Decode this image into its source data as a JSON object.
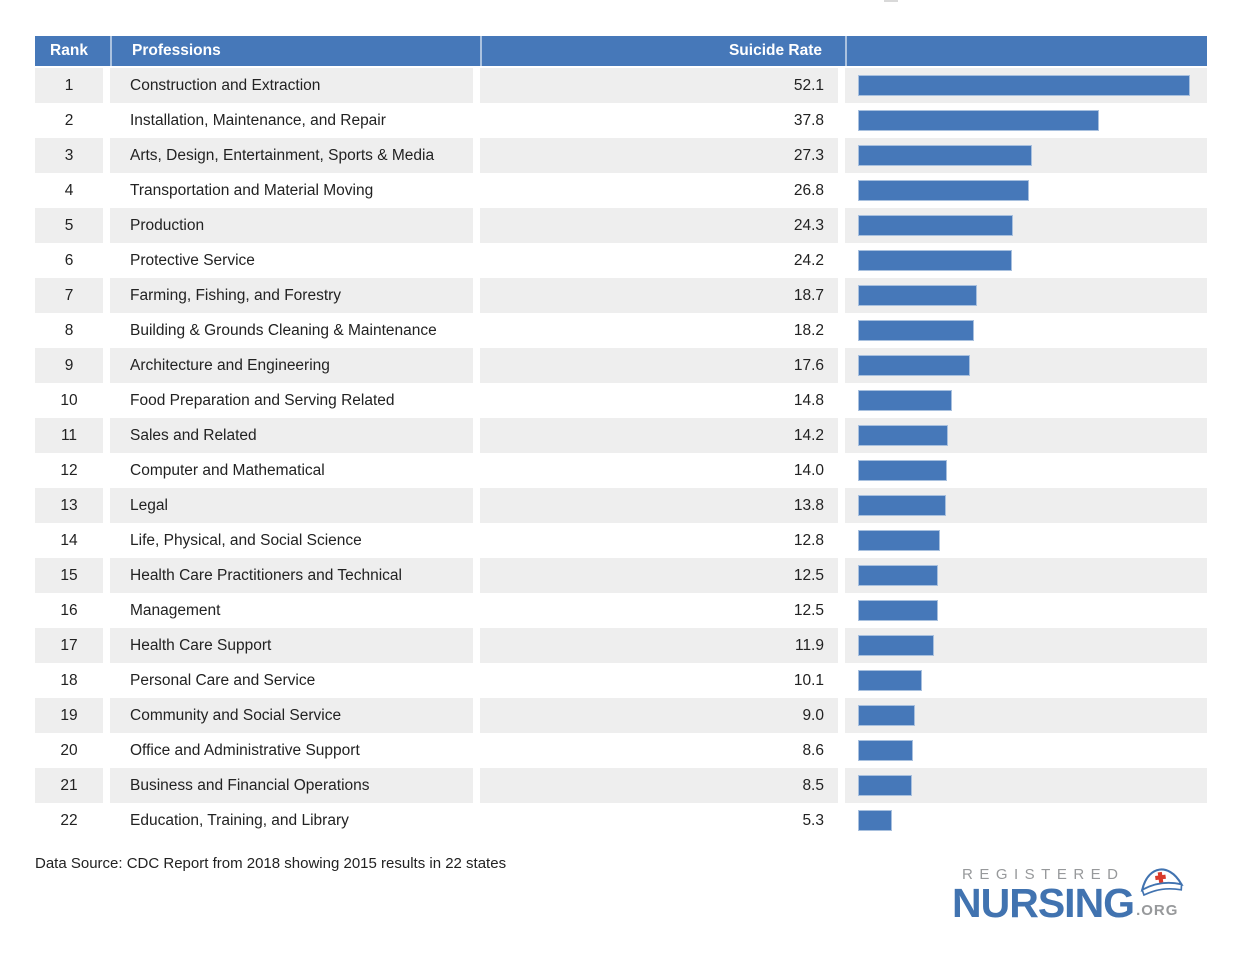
{
  "table_header": {
    "rank": "Rank",
    "professions": "Professions",
    "rate": "Suicide Rate",
    "chart": ""
  },
  "chart_data": {
    "type": "bar",
    "orientation": "horizontal",
    "value_label": "Suicide Rate",
    "max_value": 52.1,
    "bar_color": "#4678b9",
    "rows": [
      {
        "rank": "1",
        "profession": "Construction and Extraction",
        "rate": "52.1"
      },
      {
        "rank": "2",
        "profession": "Installation, Maintenance, and Repair",
        "rate": "37.8"
      },
      {
        "rank": "3",
        "profession": "Arts, Design, Entertainment, Sports & Media",
        "rate": "27.3"
      },
      {
        "rank": "4",
        "profession": "Transportation and Material Moving",
        "rate": "26.8"
      },
      {
        "rank": "5",
        "profession": "Production",
        "rate": "24.3"
      },
      {
        "rank": "6",
        "profession": "Protective Service",
        "rate": "24.2"
      },
      {
        "rank": "7",
        "profession": "Farming, Fishing, and Forestry",
        "rate": "18.7"
      },
      {
        "rank": "8",
        "profession": "Building & Grounds Cleaning & Maintenance",
        "rate": "18.2"
      },
      {
        "rank": "9",
        "profession": "Architecture and Engineering",
        "rate": "17.6"
      },
      {
        "rank": "10",
        "profession": "Food Preparation and Serving Related",
        "rate": "14.8"
      },
      {
        "rank": "11",
        "profession": "Sales and Related",
        "rate": "14.2"
      },
      {
        "rank": "12",
        "profession": "Computer and Mathematical",
        "rate": "14.0"
      },
      {
        "rank": "13",
        "profession": "Legal",
        "rate": "13.8"
      },
      {
        "rank": "14",
        "profession": "Life, Physical, and Social Science",
        "rate": "12.8"
      },
      {
        "rank": "15",
        "profession": "Health Care Practitioners and Technical",
        "rate": "12.5"
      },
      {
        "rank": "16",
        "profession": "Management",
        "rate": "12.5"
      },
      {
        "rank": "17",
        "profession": "Health Care Support",
        "rate": "11.9"
      },
      {
        "rank": "18",
        "profession": "Personal Care and Service",
        "rate": "10.1"
      },
      {
        "rank": "19",
        "profession": "Community and Social Service",
        "rate": "9.0"
      },
      {
        "rank": "20",
        "profession": "Office and Administrative Support",
        "rate": "8.6"
      },
      {
        "rank": "21",
        "profession": "Business and Financial Operations",
        "rate": "8.5"
      },
      {
        "rank": "22",
        "profession": "Education, Training, and Library",
        "rate": "5.3"
      }
    ]
  },
  "footer": {
    "source": "Data Source: CDC Report from 2018 showing 2015 results in 22 states"
  },
  "logo": {
    "registered": "REGISTERED",
    "nursing": "NURSING",
    "org": ".ORG"
  },
  "colors": {
    "header_bg": "#4678b9",
    "bar": "#4678b9",
    "row_stripe": "#eeeeee",
    "logo_blue": "#4173b0",
    "logo_gray": "#97999b",
    "cross_red": "#d93a2b",
    "text": "#222222"
  }
}
